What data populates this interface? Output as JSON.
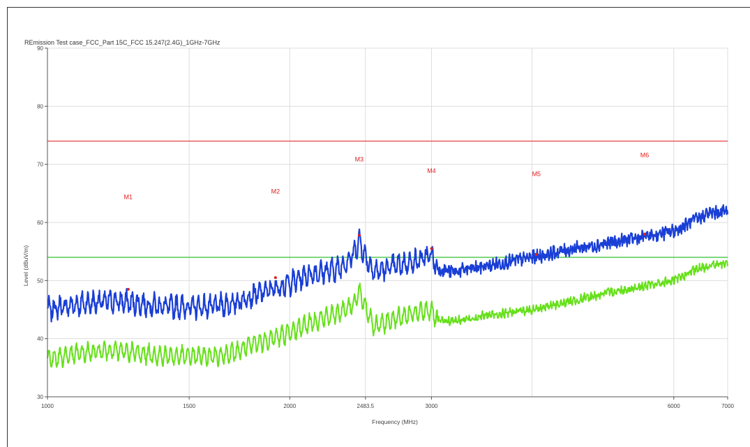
{
  "chart_data": {
    "type": "line",
    "title": "REmission Test case_FCC_Part 15C_FCC 15.247(2.4G)_1GHz-7GHz",
    "xlabel": "Frequency (MHz)",
    "ylabel": "Level (dBuV/m)",
    "x_scale": "log",
    "xlim": [
      1000,
      7000
    ],
    "ylim": [
      30,
      90
    ],
    "x_ticks": [
      {
        "v": 1000,
        "label": "1000"
      },
      {
        "v": 1500,
        "label": "1500"
      },
      {
        "v": 2000,
        "label": "2000"
      },
      {
        "v": 2483.5,
        "label": "2483.5"
      },
      {
        "v": 3000,
        "label": "3000"
      },
      {
        "v": 6000,
        "label": "6000"
      },
      {
        "v": 7000,
        "label": "7000"
      }
    ],
    "x_grid": [
      1000,
      1500,
      2000,
      2483.5,
      3000,
      4000,
      6000,
      7000
    ],
    "y_ticks": [
      30,
      40,
      50,
      60,
      70,
      80,
      90
    ],
    "grid": true,
    "limit_lines": [
      {
        "value": 74,
        "color": "#e03030"
      },
      {
        "value": 54,
        "color": "#30c030"
      }
    ],
    "series": [
      {
        "color": "#1a3fd6",
        "x": [
          1000,
          1100,
          1200,
          1300,
          1400,
          1500,
          1600,
          1700,
          1800,
          1900,
          2000,
          2100,
          2200,
          2300,
          2400,
          2440,
          2483.5,
          2550,
          2700,
          2900,
          3000,
          3050,
          3200,
          3500,
          4000,
          4500,
          5000,
          5500,
          6000,
          6300,
          6600,
          7000
        ],
        "values": [
          45,
          46,
          46.5,
          46,
          45.5,
          45.5,
          45.5,
          46,
          47.5,
          48.5,
          49.5,
          51,
          51.5,
          52,
          54.5,
          57,
          54,
          51.5,
          52.5,
          53.5,
          54.5,
          52,
          51.5,
          52.5,
          54,
          55.5,
          56.5,
          57.5,
          58.5,
          60,
          61.5,
          62
        ]
      },
      {
        "color": "#66e01a",
        "x": [
          1000,
          1100,
          1200,
          1300,
          1400,
          1500,
          1600,
          1700,
          1800,
          1900,
          2000,
          2100,
          2200,
          2300,
          2400,
          2440,
          2483.5,
          2550,
          2700,
          2900,
          3000,
          3050,
          3200,
          3500,
          4000,
          4500,
          5000,
          5500,
          6000,
          6300,
          6600,
          7000
        ],
        "values": [
          36.5,
          37.5,
          38,
          37.5,
          37,
          37,
          37,
          37.5,
          39,
          40,
          41,
          42.5,
          43.5,
          44.5,
          46,
          48,
          45.5,
          42,
          43.5,
          44.5,
          45,
          43,
          43,
          44,
          45,
          46.5,
          48,
          49,
          50,
          51.5,
          52.5,
          53
        ]
      }
    ],
    "markers": [
      {
        "label": "M1",
        "x": 1260,
        "y": 48.5,
        "label_y": 64
      },
      {
        "label": "M2",
        "x": 1920,
        "y": 50.5,
        "label_y": 65
      },
      {
        "label": "M3",
        "x": 2440,
        "y": 57.8,
        "label_y": 70.5
      },
      {
        "label": "M4",
        "x": 3000,
        "y": 55.5,
        "label_y": 68.5
      },
      {
        "label": "M5",
        "x": 4050,
        "y": 54.5,
        "label_y": 68
      },
      {
        "label": "M6",
        "x": 5520,
        "y": 58,
        "label_y": 71.2
      }
    ]
  }
}
